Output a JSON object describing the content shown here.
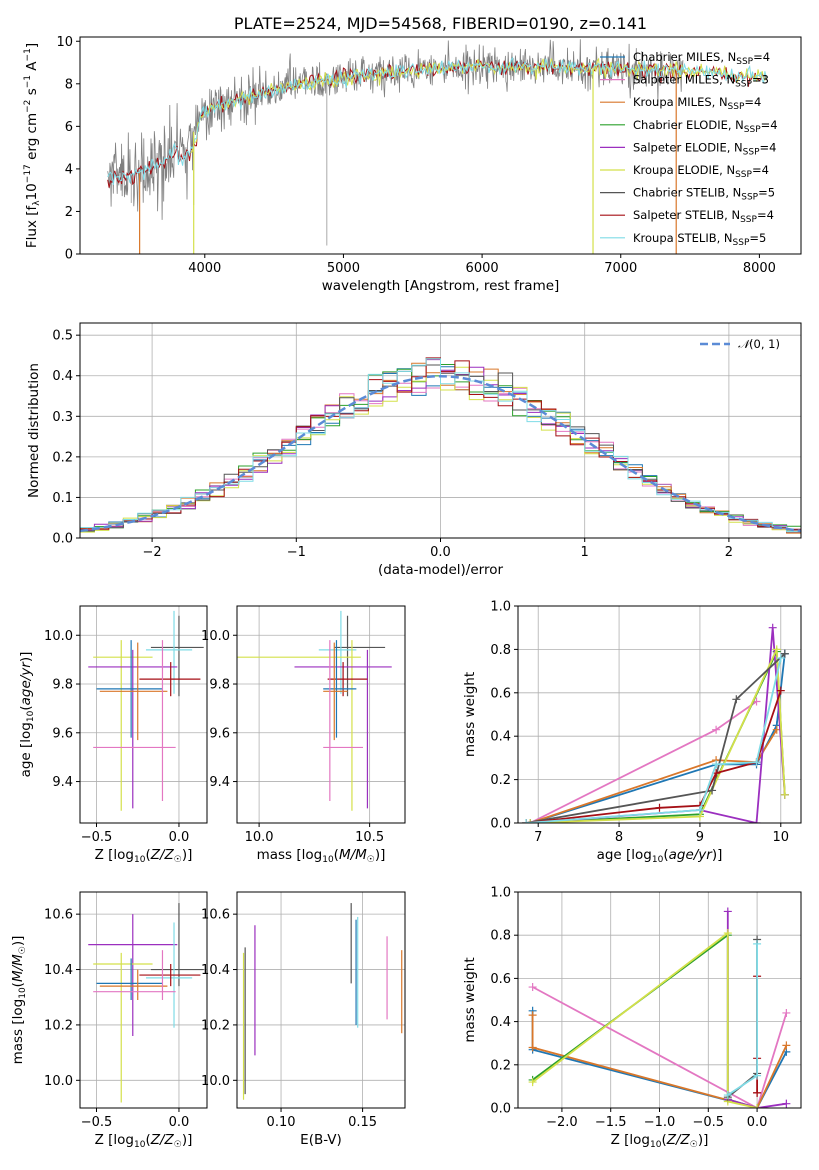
{
  "colors": {
    "miles_chabrier": "#1f77b4",
    "miles_salpeter": "#e377c2",
    "miles_kroupa": "#d9772a",
    "elodie_chabrier": "#2ca02c",
    "elodie_salpeter": "#9b2fbf",
    "elodie_kroupa": "#d4e04a",
    "stelib_chabrier": "#555555",
    "stelib_salpeter": "#a50f15",
    "stelib_kroupa": "#7fdbe6",
    "observed": "#808080",
    "normal": "#5b8bd6",
    "grid": "#b0b0b0"
  },
  "chart_data": [
    {
      "id": "spectrum",
      "type": "line",
      "title": "PLATE=2524, MJD=54568, FIBERID=0190, z=0.141",
      "xlabel": "wavelength [Angstrom, rest frame]",
      "ylabel": "Flux [fλ10⁻¹⁷ erg cm⁻² s⁻¹ A⁻¹]",
      "xlim": [
        3100,
        8300
      ],
      "ylim": [
        0,
        10.2
      ],
      "xticks": [
        4000,
        5000,
        6000,
        7000,
        8000
      ],
      "yticks": [
        0,
        2,
        4,
        6,
        8,
        10
      ],
      "grid": false,
      "legend": [
        "Chabrier MILES, N_SSP=4",
        "Salpeter MILES, N_SSP=3",
        "Kroupa MILES, N_SSP=4",
        "Chabrier ELODIE, N_SSP=4",
        "Salpeter ELODIE, N_SSP=4",
        "Kroupa ELODIE, N_SSP=4",
        "Chabrier STELIB, N_SSP=5",
        "Salpeter STELIB, N_SSP=4",
        "Kroupa STELIB, N_SSP=5"
      ],
      "legend_placement": "right",
      "continuum": {
        "x": [
          3300,
          3500,
          3700,
          3900,
          4000,
          4200,
          4500,
          4800,
          5000,
          5300,
          5600,
          6000,
          6500,
          7000,
          7500,
          8000
        ],
        "y": [
          3.6,
          3.7,
          4.3,
          5.5,
          6.7,
          7.2,
          7.7,
          8.1,
          8.3,
          8.5,
          8.7,
          8.8,
          8.8,
          8.7,
          8.6,
          8.3
        ]
      }
    },
    {
      "id": "residuals",
      "type": "line",
      "xlabel": "(data-model)/error",
      "ylabel": "Normed distribution",
      "xlim": [
        -2.5,
        2.5
      ],
      "ylim": [
        0,
        0.53
      ],
      "xticks": [
        -2,
        -1,
        0,
        1,
        2
      ],
      "yticks": [
        0.0,
        0.1,
        0.2,
        0.3,
        0.4,
        0.5
      ],
      "grid": true,
      "legend": [
        "N(0,1)"
      ],
      "legend_placement": "top-right"
    },
    {
      "id": "age-vs-z",
      "type": "scatter",
      "xlabel": "Z [log10(Z/Z☉)]",
      "ylabel": "age  [log10(age/yr)]",
      "xlim": [
        -0.6,
        0.17
      ],
      "ylim": [
        9.23,
        10.12
      ],
      "xticks": [
        -0.5,
        0.0
      ],
      "yticks": [
        9.4,
        9.6,
        9.8,
        10.0
      ],
      "grid": true,
      "points": [
        {
          "key": "stelib_chabrier",
          "x": 0.0,
          "y": 9.95,
          "xerr": [
            0.17,
            0.15
          ],
          "yerr": [
            0.2,
            0.13
          ]
        },
        {
          "key": "stelib_kroupa",
          "x": -0.03,
          "y": 9.94,
          "xerr": [
            0.17,
            0.11
          ],
          "yerr": [
            0.18,
            0.16
          ]
        },
        {
          "key": "elodie_kroupa",
          "x": -0.35,
          "y": 9.91,
          "xerr": [
            0.17,
            0.19
          ],
          "yerr": [
            0.63,
            0.07
          ]
        },
        {
          "key": "elodie_salpeter",
          "x": -0.28,
          "y": 9.87,
          "xerr": [
            0.27,
            0.27
          ],
          "yerr": [
            0.58,
            0.07
          ]
        },
        {
          "key": "stelib_salpeter",
          "x": -0.05,
          "y": 9.82,
          "xerr": [
            0.19,
            0.18
          ],
          "yerr": [
            0.07,
            0.07
          ]
        },
        {
          "key": "miles_chabrier",
          "x": -0.29,
          "y": 9.78,
          "xerr": [
            0.21,
            0.19
          ],
          "yerr": [
            0.2,
            0.2
          ]
        },
        {
          "key": "miles_kroupa",
          "x": -0.25,
          "y": 9.77,
          "xerr": [
            0.23,
            0.18
          ],
          "yerr": [
            0.2,
            0.2
          ]
        },
        {
          "key": "miles_salpeter",
          "x": -0.1,
          "y": 9.54,
          "xerr": [
            0.42,
            0.08
          ],
          "yerr": [
            0.22,
            0.44
          ]
        }
      ]
    },
    {
      "id": "age-vs-mass",
      "type": "scatter",
      "xlabel": "mass [log10(M/M☉)]",
      "ylabel": "",
      "xlim": [
        9.9,
        10.66
      ],
      "ylim": [
        9.23,
        10.12
      ],
      "xticks": [
        10.0,
        10.5
      ],
      "yticks": [
        9.4,
        9.6,
        9.8,
        10.0
      ],
      "grid": true,
      "points": [
        {
          "key": "stelib_chabrier",
          "x": 10.4,
          "y": 9.95,
          "xerr": [
            0.06,
            0.17
          ],
          "yerr": [
            0.2,
            0.13
          ]
        },
        {
          "key": "stelib_kroupa",
          "x": 10.37,
          "y": 9.94,
          "xerr": [
            0.1,
            0.07
          ],
          "yerr": [
            0.18,
            0.16
          ]
        },
        {
          "key": "elodie_kroupa",
          "x": 10.42,
          "y": 9.91,
          "xerr": [
            0.64,
            0.04
          ],
          "yerr": [
            0.63,
            0.07
          ]
        },
        {
          "key": "elodie_salpeter",
          "x": 10.49,
          "y": 9.87,
          "xerr": [
            0.33,
            0.11
          ],
          "yerr": [
            0.58,
            0.07
          ]
        },
        {
          "key": "stelib_salpeter",
          "x": 10.38,
          "y": 9.82,
          "xerr": [
            0.07,
            0.11
          ],
          "yerr": [
            0.07,
            0.07
          ]
        },
        {
          "key": "miles_chabrier",
          "x": 10.35,
          "y": 9.78,
          "xerr": [
            0.06,
            0.09
          ],
          "yerr": [
            0.2,
            0.2
          ]
        },
        {
          "key": "miles_kroupa",
          "x": 10.34,
          "y": 9.77,
          "xerr": [
            0.05,
            0.06
          ],
          "yerr": [
            0.2,
            0.2
          ]
        },
        {
          "key": "miles_salpeter",
          "x": 10.32,
          "y": 9.54,
          "xerr": [
            0.03,
            0.15
          ],
          "yerr": [
            0.22,
            0.44
          ]
        }
      ]
    },
    {
      "id": "weight-vs-age",
      "type": "line",
      "xlabel": "age  [log10(age/yr)]",
      "ylabel": "mass weight",
      "xlim": [
        6.75,
        10.25
      ],
      "ylim": [
        0,
        1.0
      ],
      "xticks": [
        7,
        8,
        9,
        10
      ],
      "yticks": [
        0.0,
        0.2,
        0.4,
        0.6,
        0.8,
        1.0
      ],
      "grid": true,
      "series": [
        {
          "key": "miles_salpeter",
          "x": [
            6.9,
            9.2,
            9.7
          ],
          "y": [
            0.0,
            0.43,
            0.56
          ]
        },
        {
          "key": "miles_chabrier",
          "x": [
            6.9,
            9.2,
            9.7,
            9.95,
            10.05
          ],
          "y": [
            0.0,
            0.27,
            0.27,
            0.45,
            0.78
          ]
        },
        {
          "key": "miles_kroupa",
          "x": [
            6.9,
            9.2,
            9.7,
            9.95
          ],
          "y": [
            0.0,
            0.29,
            0.28,
            0.43
          ]
        },
        {
          "key": "elodie_chabrier",
          "x": [
            6.9,
            9.0,
            9.95,
            10.05
          ],
          "y": [
            0.0,
            0.04,
            0.79,
            0.13
          ]
        },
        {
          "key": "elodie_salpeter",
          "x": [
            6.9,
            9.0,
            9.7,
            9.9,
            10.05
          ],
          "y": [
            0.0,
            0.06,
            0.0,
            0.9,
            0.13
          ]
        },
        {
          "key": "elodie_kroupa",
          "x": [
            6.9,
            9.0,
            9.95,
            10.05
          ],
          "y": [
            0.0,
            0.03,
            0.8,
            0.13
          ]
        },
        {
          "key": "stelib_chabrier",
          "x": [
            6.85,
            9.15,
            9.45,
            10.05
          ],
          "y": [
            0.0,
            0.15,
            0.57,
            0.78
          ]
        },
        {
          "key": "stelib_salpeter",
          "x": [
            6.85,
            8.5,
            9.0,
            9.2,
            9.7,
            10.0
          ],
          "y": [
            0.0,
            0.07,
            0.08,
            0.23,
            0.28,
            0.61
          ]
        },
        {
          "key": "stelib_kroupa",
          "x": [
            6.85,
            9.0,
            9.2,
            9.7,
            10.0
          ],
          "y": [
            0.0,
            0.06,
            0.27,
            0.28,
            0.76
          ]
        }
      ]
    },
    {
      "id": "mass-vs-z",
      "type": "scatter",
      "xlabel": "Z [log10(Z/Z☉)]",
      "ylabel": "mass [log10(M/M☉)]",
      "xlim": [
        -0.6,
        0.17
      ],
      "ylim": [
        9.9,
        10.68
      ],
      "xticks": [
        -0.5,
        0.0
      ],
      "yticks": [
        10.0,
        10.2,
        10.4,
        10.6
      ],
      "grid": true,
      "points": [
        {
          "key": "elodie_salpeter",
          "x": -0.28,
          "y": 10.49,
          "xerr": [
            0.27,
            0.27
          ],
          "yerr": [
            0.33,
            0.11
          ]
        },
        {
          "key": "stelib_chabrier",
          "x": 0.0,
          "y": 10.4,
          "xerr": [
            0.17,
            0.15
          ],
          "yerr": [
            0.06,
            0.24
          ]
        },
        {
          "key": "elodie_kroupa",
          "x": -0.35,
          "y": 10.42,
          "xerr": [
            0.17,
            0.19
          ],
          "yerr": [
            0.5,
            0.04
          ]
        },
        {
          "key": "stelib_kroupa",
          "x": -0.03,
          "y": 10.37,
          "xerr": [
            0.17,
            0.11
          ],
          "yerr": [
            0.18,
            0.2
          ]
        },
        {
          "key": "stelib_salpeter",
          "x": -0.05,
          "y": 10.38,
          "xerr": [
            0.19,
            0.18
          ],
          "yerr": [
            0.04,
            0.04
          ]
        },
        {
          "key": "miles_chabrier",
          "x": -0.29,
          "y": 10.35,
          "xerr": [
            0.21,
            0.19
          ],
          "yerr": [
            0.06,
            0.09
          ]
        },
        {
          "key": "miles_kroupa",
          "x": -0.25,
          "y": 10.34,
          "xerr": [
            0.23,
            0.18
          ],
          "yerr": [
            0.05,
            0.06
          ]
        },
        {
          "key": "miles_salpeter",
          "x": -0.1,
          "y": 10.32,
          "xerr": [
            0.42,
            0.08
          ],
          "yerr": [
            0.03,
            0.15
          ]
        }
      ]
    },
    {
      "id": "mass-vs-ebv",
      "type": "scatter",
      "xlabel": "E(B-V)",
      "ylabel": "",
      "xlim": [
        0.073,
        0.176
      ],
      "ylim": [
        9.9,
        10.68
      ],
      "xticks": [
        0.1,
        0.15
      ],
      "yticks": [
        10.0,
        10.2,
        10.4,
        10.6
      ],
      "grid": true,
      "points": [
        {
          "key": "elodie_kroupa",
          "x": 0.077,
          "y": 10.2,
          "yerr": [
            0.27,
            0.26
          ]
        },
        {
          "key": "stelib_chabrier",
          "x": 0.078,
          "y": 10.3,
          "yerr": [
            0.35,
            0.18
          ]
        },
        {
          "key": "elodie_salpeter",
          "x": 0.084,
          "y": 10.32,
          "yerr": [
            0.23,
            0.24
          ]
        },
        {
          "key": "stelib_chabrier",
          "x": 0.143,
          "y": 10.5,
          "yerr": [
            0.15,
            0.14
          ]
        },
        {
          "key": "miles_chabrier",
          "x": 0.146,
          "y": 10.4,
          "yerr": [
            0.2,
            0.18
          ]
        },
        {
          "key": "stelib_kroupa",
          "x": 0.147,
          "y": 10.39,
          "yerr": [
            0.2,
            0.2
          ]
        },
        {
          "key": "miles_salpeter",
          "x": 0.165,
          "y": 10.37,
          "yerr": [
            0.15,
            0.15
          ]
        },
        {
          "key": "miles_kroupa",
          "x": 0.174,
          "y": 10.32,
          "yerr": [
            0.15,
            0.15
          ]
        }
      ]
    },
    {
      "id": "weight-vs-z",
      "type": "line",
      "xlabel": "Z [log10(Z/Z☉)]",
      "ylabel": "mass weight",
      "xlim": [
        -2.45,
        0.45
      ],
      "ylim": [
        0,
        1.0
      ],
      "xticks": [
        -2.0,
        -1.5,
        -1.0,
        -0.5,
        0.0
      ],
      "yticks": [
        0.0,
        0.2,
        0.4,
        0.6,
        0.8,
        1.0
      ],
      "grid": true,
      "series": [
        {
          "key": "miles_salpeter",
          "x": [
            -2.3,
            0.0,
            0.3
          ],
          "y": [
            0.56,
            0.0,
            0.44
          ]
        },
        {
          "key": "miles_chabrier",
          "x": [
            -2.3,
            -2.3,
            0.0,
            0.3
          ],
          "y": [
            0.45,
            0.27,
            0.0,
            0.26
          ]
        },
        {
          "key": "miles_kroupa",
          "x": [
            -2.3,
            -2.3,
            0.0,
            0.3
          ],
          "y": [
            0.43,
            0.28,
            0.0,
            0.29
          ]
        },
        {
          "key": "elodie_chabrier",
          "x": [
            -2.3,
            -0.3,
            -0.3,
            0.0
          ],
          "y": [
            0.13,
            0.8,
            0.04,
            0.0
          ]
        },
        {
          "key": "elodie_salpeter",
          "x": [
            -0.3,
            -0.3,
            0.0,
            0.3
          ],
          "y": [
            0.91,
            0.04,
            0.0,
            0.02
          ]
        },
        {
          "key": "elodie_kroupa",
          "x": [
            -2.3,
            -0.3,
            -0.3,
            0.0
          ],
          "y": [
            0.12,
            0.81,
            0.03,
            0.0
          ]
        },
        {
          "key": "stelib_chabrier",
          "x": [
            -0.3,
            0.0,
            0.0
          ],
          "y": [
            0.05,
            0.16,
            0.78
          ]
        },
        {
          "key": "stelib_salpeter",
          "x": [
            0.0,
            0.0,
            0.0,
            0.0
          ],
          "y": [
            0.07,
            0.23,
            0.61,
            0.07
          ]
        },
        {
          "key": "stelib_kroupa",
          "x": [
            -0.3,
            0.0,
            0.0
          ],
          "y": [
            0.06,
            0.15,
            0.76
          ]
        }
      ]
    }
  ]
}
